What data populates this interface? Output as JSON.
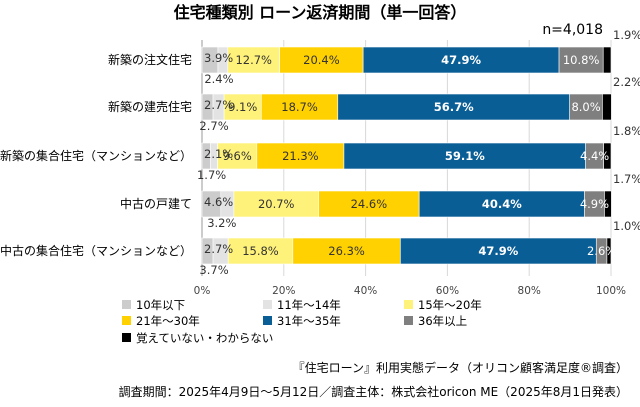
{
  "chart_data": {
    "type": "bar",
    "orientation": "horizontal",
    "stacked": "percent",
    "title": "住宅種類別 ローン返済期間（単一回答）",
    "sample_size": "n=4,018",
    "categories": [
      "新築の注文住宅",
      "新築の建売住宅",
      "新築の集合住宅（マンションなど）",
      "中古の戸建て",
      "中古の集合住宅（マンションなど）"
    ],
    "series": [
      {
        "name": "10年以下",
        "color": "#cccccc",
        "values": [
          3.9,
          2.7,
          2.1,
          4.6,
          2.7
        ],
        "labels": [
          "3.9%",
          "2.7%",
          "2.1%",
          "4.6%",
          "2.7%"
        ]
      },
      {
        "name": "11年～14年",
        "color": "#e3e3e3",
        "values": [
          2.4,
          2.7,
          1.7,
          3.2,
          3.7
        ],
        "labels": [
          "2.4%",
          "2.7%",
          "1.7%",
          "3.2%",
          "3.7%"
        ]
      },
      {
        "name": "15年～20年",
        "color": "#fff27a",
        "values": [
          12.7,
          9.1,
          9.6,
          20.7,
          15.8
        ],
        "labels": [
          "12.7%",
          "9.1%",
          "9.6%",
          "20.7%",
          "15.8%"
        ]
      },
      {
        "name": "21年～30年",
        "color": "#ffd100",
        "values": [
          20.4,
          18.7,
          21.3,
          24.6,
          26.3
        ],
        "labels": [
          "20.4%",
          "18.7%",
          "21.3%",
          "24.6%",
          "26.3%"
        ]
      },
      {
        "name": "31年～35年",
        "color": "#0a5e96",
        "values": [
          47.9,
          56.7,
          59.1,
          40.4,
          47.9
        ],
        "labels": [
          "47.9%",
          "56.7%",
          "59.1%",
          "40.4%",
          "47.9%"
        ]
      },
      {
        "name": "36年以上",
        "color": "#7f7f7f",
        "values": [
          10.8,
          8.0,
          4.4,
          4.9,
          2.6
        ],
        "labels": [
          "10.8%",
          "8.0%",
          "4.4%",
          "4.9%",
          "2.6%"
        ]
      },
      {
        "name": "覚えていない・わからない",
        "color": "#000000",
        "values": [
          1.9,
          2.2,
          1.8,
          1.7,
          1.0
        ],
        "labels": [
          "1.9%",
          "2.2%",
          "1.8%",
          "1.7%",
          "1.0%"
        ]
      }
    ],
    "x_ticks": [
      "0%",
      "20%",
      "40%",
      "60%",
      "80%",
      "100%"
    ],
    "xlim": [
      0,
      100
    ],
    "grid": true,
    "legend_position": "bottom-left"
  },
  "source_note": "『住宅ローン』利用実態データ（オリコン顧客満足度®調査）",
  "period_note": "調査期間：2025年4月9日～5月12日／調査主体：株式会社oricon ME（2025年8月1日発表）"
}
